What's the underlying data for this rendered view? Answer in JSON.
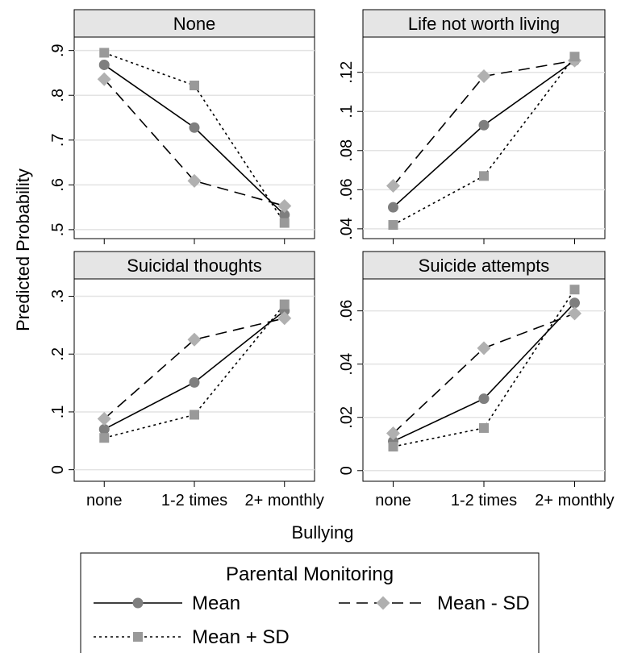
{
  "chart_data": {
    "type": "line",
    "ylabel": "Predicted Probability",
    "xlabel": "Bullying",
    "categories": [
      "none",
      "1-2 times",
      "2+ monthly"
    ],
    "legend": {
      "title": "Parental Monitoring",
      "placement": "bottom",
      "entries": [
        "Mean",
        "Mean - SD",
        "Mean + SD"
      ]
    },
    "series_styles": {
      "Mean": {
        "dash": "solid",
        "marker": "circle",
        "color": "#7f7f7f"
      },
      "Mean - SD": {
        "dash": "dashed",
        "marker": "diamond",
        "color": "#b0b0b0"
      },
      "Mean + SD": {
        "dash": "dotted",
        "marker": "square",
        "color": "#999999"
      }
    },
    "grid": true,
    "panels": [
      {
        "title": "None",
        "ylim": [
          0.48,
          0.93
        ],
        "yticks": [
          0.5,
          0.6,
          0.7,
          0.8,
          0.9
        ],
        "ytick_labels": [
          ".5",
          ".6",
          ".7",
          ".8",
          ".9"
        ],
        "series": [
          {
            "name": "Mean",
            "values": [
              0.868,
              0.728,
              0.533
            ]
          },
          {
            "name": "Mean - SD",
            "values": [
              0.836,
              0.609,
              0.553
            ]
          },
          {
            "name": "Mean + SD",
            "values": [
              0.895,
              0.822,
              0.515
            ]
          }
        ]
      },
      {
        "title": "Life not worth living",
        "ylim": [
          0.035,
          0.138
        ],
        "yticks": [
          0.04,
          0.06,
          0.08,
          0.1,
          0.12
        ],
        "ytick_labels": [
          ".04",
          ".06",
          ".08",
          ".1",
          ".12"
        ],
        "series": [
          {
            "name": "Mean",
            "values": [
              0.051,
              0.093,
              0.126
            ]
          },
          {
            "name": "Mean - SD",
            "values": [
              0.062,
              0.118,
              0.126
            ]
          },
          {
            "name": "Mean + SD",
            "values": [
              0.042,
              0.067,
              0.128
            ]
          }
        ]
      },
      {
        "title": "Suicidal thoughts",
        "ylim": [
          -0.02,
          0.33
        ],
        "yticks": [
          0,
          0.1,
          0.2,
          0.3
        ],
        "ytick_labels": [
          "0",
          ".1",
          ".2",
          ".3"
        ],
        "series": [
          {
            "name": "Mean",
            "values": [
              0.07,
              0.151,
              0.275
            ]
          },
          {
            "name": "Mean - SD",
            "values": [
              0.088,
              0.225,
              0.262
            ]
          },
          {
            "name": "Mean + SD",
            "values": [
              0.055,
              0.095,
              0.286
            ]
          }
        ]
      },
      {
        "title": "Suicide attempts",
        "ylim": [
          -0.004,
          0.072
        ],
        "yticks": [
          0,
          0.02,
          0.04,
          0.06
        ],
        "ytick_labels": [
          "0",
          ".02",
          ".04",
          ".06"
        ],
        "series": [
          {
            "name": "Mean",
            "values": [
              0.011,
              0.027,
              0.063
            ]
          },
          {
            "name": "Mean - SD",
            "values": [
              0.014,
              0.046,
              0.059
            ]
          },
          {
            "name": "Mean + SD",
            "values": [
              0.009,
              0.016,
              0.068
            ]
          }
        ]
      }
    ]
  }
}
